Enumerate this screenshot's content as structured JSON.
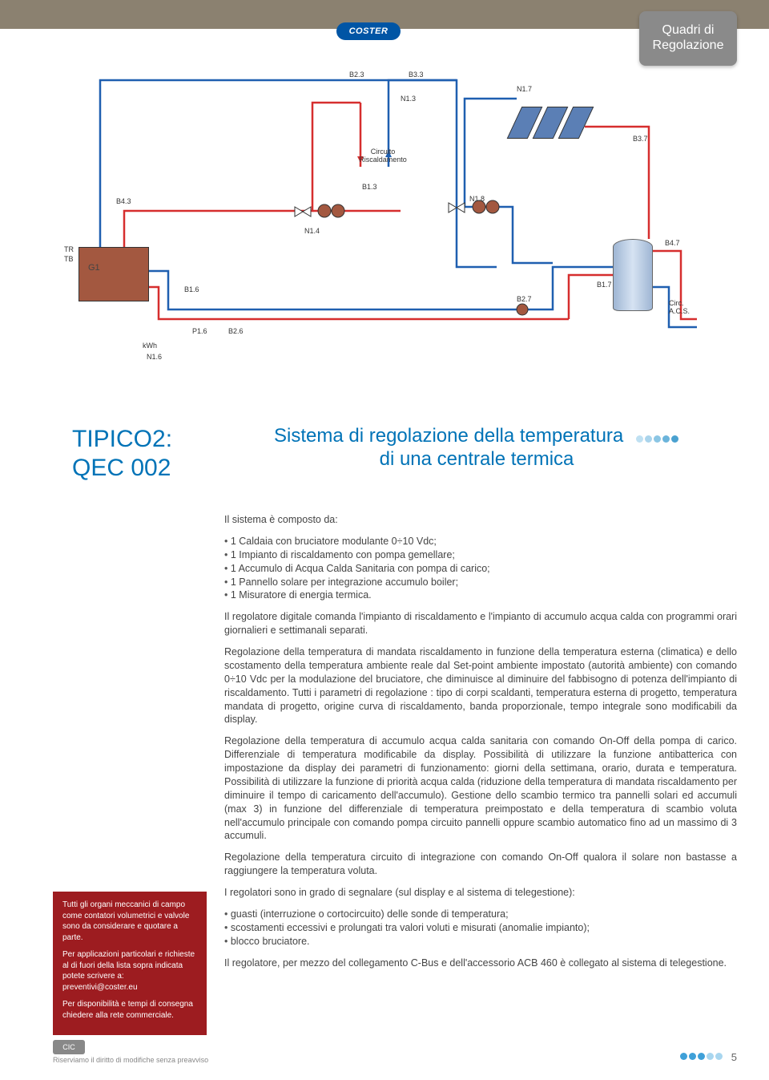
{
  "brand": "COSTER",
  "header_badge_line1": "Quadri di",
  "header_badge_line2": "Regolazione",
  "diagram": {
    "labels": {
      "B2_3": "B2.3",
      "B3_3": "B3.3",
      "N1_3": "N1.3",
      "N1_7": "N1.7",
      "B3_7": "B3.7",
      "circ_risc": "Circuito Riscaldamento",
      "B1_3": "B1.3",
      "B4_3": "B4.3",
      "N1_4": "N1.4",
      "N1_8": "N1.8",
      "TR": "TR",
      "TB": "TB",
      "G1": "G1",
      "B1_6": "B1.6",
      "P1_6": "P1.6",
      "B2_6": "B2.6",
      "kwh": "kWh",
      "N1_6": "N1.6",
      "B2_7": "B2.7",
      "B1_7": "B1.7",
      "B4_7": "B4.7",
      "circ_acs": "Circ. A.C.S."
    },
    "colors": {
      "hot": "#d62e2e",
      "cold": "#1f5fb0",
      "outline": "#444444",
      "boiler": "#a35840",
      "tank": "#9fb6d4",
      "solar": "#5b7fb5"
    }
  },
  "title_left_l1": "TIPICO2:",
  "title_left_l2": "QEC 002",
  "title_right_l1": "Sistema di regolazione della temperatura",
  "title_right_l2": "di una centrale termica",
  "dot_colors": [
    "#bfe0f2",
    "#aad4ec",
    "#8bc6e4",
    "#6bb4db",
    "#4aa1d0"
  ],
  "body": {
    "intro": "Il sistema è composto da:",
    "components": [
      "1 Caldaia con bruciatore modulante 0÷10 Vdc;",
      "1 Impianto di riscaldamento con pompa gemellare;",
      "1 Accumulo di Acqua Calda Sanitaria con pompa di carico;",
      "1 Pannello solare per integrazione accumulo boiler;",
      "1 Misuratore di energia termica."
    ],
    "p1": "Il regolatore digitale comanda l'impianto di riscaldamento e l'impianto di accumulo acqua calda con programmi orari giornalieri e settimanali separati.",
    "p2": "Regolazione della temperatura di mandata riscaldamento in funzione della temperatura esterna (climatica) e dello scostamento della temperatura ambiente reale dal Set-point ambiente impostato (autorità ambiente) con comando 0÷10 Vdc per la modulazione del bruciatore, che diminuisce al diminuire del fabbisogno di potenza dell'impianto di riscaldamento. Tutti i parametri di regolazione : tipo di corpi scaldanti, temperatura esterna di progetto, temperatura mandata di progetto, origine curva di riscaldamento, banda proporzionale, tempo integrale sono modificabili da display.",
    "p3": "Regolazione della temperatura di accumulo acqua calda sanitaria con comando On-Off della pompa di carico. Differenziale di temperatura modificabile da display. Possibilità di utilizzare la funzione antibatterica con impostazione da display dei parametri di funzionamento: giorni della settimana, orario, durata e temperatura. Possibilità di utilizzare la funzione di priorità acqua calda (riduzione della temperatura di mandata riscaldamento per diminuire il tempo di caricamento dell'accumulo). Gestione dello scambio termico tra pannelli solari ed accumuli (max 3) in funzione del differenziale di temperatura preimpostato e della temperatura di scambio voluta nell'accumulo principale con comando pompa circuito pannelli oppure scambio automatico fino ad un massimo di 3 accumuli.",
    "p4": "Regolazione della temperatura circuito di integrazione con comando On-Off qualora il solare non bastasse a raggiungere la temperatura voluta.",
    "sig_intro": "I regolatori sono in grado di segnalare (sul display e al sistema di telegestione):",
    "signals": [
      "guasti (interruzione o cortocircuito) delle sonde di temperatura;",
      "scostamenti eccessivi e prolungati tra valori voluti e misurati (anomalie impianto);",
      "blocco bruciatore."
    ],
    "p5": "Il regolatore, per mezzo del collegamento C-Bus e dell'accessorio ACB 460 è collegato al sistema di telegestione."
  },
  "redbox": {
    "p1": "Tutti gli organi meccanici di campo come contatori volumetrici e valvole sono da considerare e quotare a parte.",
    "p2": "Per applicazioni particolari e richieste al di fuori della lista sopra indicata potete scrivere a: preventivi@coster.eu",
    "p3": "Per disponibilità e tempi di consegna chiedere alla rete commerciale."
  },
  "footer": {
    "disclaimer": "Riserviamo il diritto di modifiche senza preavviso",
    "page": "5",
    "dot_colors": [
      "#3fa0d8",
      "#3fa0d8",
      "#3fa0d8",
      "#a8d6ef",
      "#a8d6ef"
    ]
  }
}
